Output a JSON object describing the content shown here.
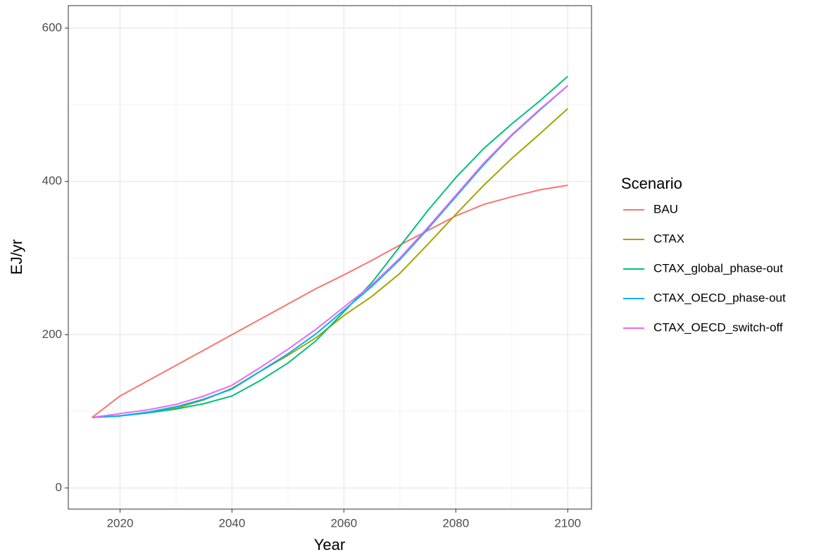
{
  "chart_data": {
    "type": "line",
    "x_label": "Year",
    "y_label": "EJ/yr",
    "legend_title": "Scenario",
    "legend_position": "right",
    "x": [
      2015,
      2020,
      2025,
      2030,
      2035,
      2040,
      2045,
      2050,
      2055,
      2060,
      2065,
      2070,
      2075,
      2080,
      2085,
      2090,
      2095,
      2100
    ],
    "series": [
      {
        "name": "BAU",
        "color": "#F8766D",
        "values": [
          92,
          120,
          140,
          160,
          180,
          200,
          220,
          240,
          260,
          278,
          297,
          317,
          336,
          355,
          370,
          380,
          389,
          395
        ]
      },
      {
        "name": "CTAX",
        "color": "#A3A500",
        "values": [
          92,
          94,
          98,
          104,
          115,
          130,
          152,
          173,
          196,
          225,
          250,
          280,
          318,
          357,
          395,
          430,
          462,
          495
        ]
      },
      {
        "name": "CTAX_global_phase-out",
        "color": "#00BF7D",
        "values": [
          92,
          94,
          98,
          103,
          110,
          120,
          140,
          163,
          192,
          230,
          268,
          315,
          362,
          405,
          443,
          475,
          505,
          537
        ]
      },
      {
        "name": "CTAX_OECD_phase-out",
        "color": "#00B0F6",
        "values": [
          92,
          94,
          99,
          106,
          116,
          129,
          152,
          175,
          201,
          232,
          263,
          298,
          338,
          380,
          422,
          460,
          493,
          525
        ]
      },
      {
        "name": "CTAX_OECD_switch-off",
        "color": "#E76BF3",
        "values": [
          92,
          97,
          102,
          109,
          120,
          134,
          157,
          181,
          207,
          236,
          265,
          300,
          340,
          382,
          424,
          461,
          494,
          525
        ]
      }
    ],
    "xlim": [
      2010.75,
      2104.25
    ],
    "xticks": [
      2020,
      2040,
      2060,
      2080,
      2100
    ],
    "x_minor_grid": [
      2030,
      2050,
      2070,
      2090
    ],
    "ylim": [
      -27.6,
      629.4
    ],
    "yticks": [
      0,
      200,
      400,
      600
    ],
    "y_minor_grid": [
      100,
      300,
      500
    ],
    "grid": true
  }
}
